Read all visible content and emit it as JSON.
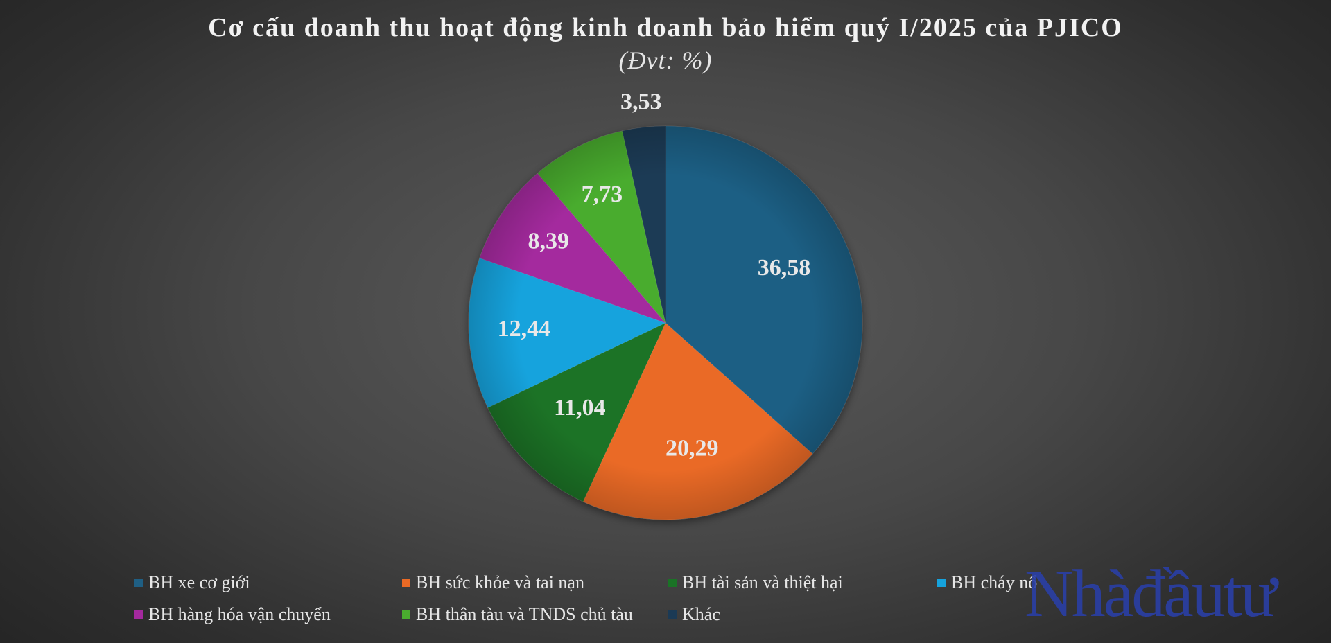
{
  "chart_data": {
    "type": "pie",
    "title": "Cơ cấu doanh thu hoạt động kinh doanh bảo hiểm quý I/2025 của PJICO",
    "subtitle": "(Đvt: %)",
    "categories": [
      "BH xe cơ giới",
      "BH sức khỏe và tai nạn",
      "BH tài sản và thiệt hại",
      "BH cháy nổ",
      "BH hàng hóa vận chuyển",
      "BH thân tàu và TNDS chủ tàu",
      "Khác"
    ],
    "values": [
      36.58,
      20.29,
      11.04,
      12.44,
      8.39,
      7.73,
      3.53
    ],
    "value_labels": [
      "36,58",
      "20,29",
      "11,04",
      "12,44",
      "8,39",
      "7,73",
      "3,53"
    ],
    "colors": [
      "#1f5f84",
      "#ea6a25",
      "#1a7326",
      "#16a3dd",
      "#a4299e",
      "#4aac2f",
      "#1b3a55"
    ],
    "legend_position": "bottom"
  },
  "watermark": "Nhàđầutư"
}
